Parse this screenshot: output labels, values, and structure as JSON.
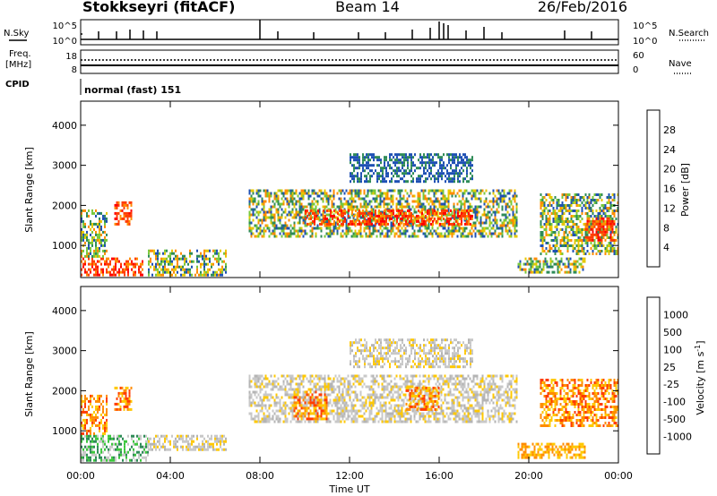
{
  "header": {
    "station": "Stokkseyri (fitACF)",
    "beam": "Beam 14",
    "date": "26/Feb/2016"
  },
  "strip_labels": {
    "nsky": "N.Sky",
    "freq_line1": "Freq.",
    "freq_line2": "[MHz]",
    "cpid": "CPID",
    "nsearch": "N.Search",
    "nave": "Nave",
    "noise_top": "10^5",
    "noise_bottom": "10^0",
    "freq_top": "18",
    "freq_bottom": "8",
    "nave_top": "60",
    "nave_bottom": "0",
    "cpid_text": "normal (fast) 151"
  },
  "chart_data": [
    {
      "type": "heatmap",
      "panel": "power",
      "ylabel": "Slant Range [km]",
      "y_ticks": [
        "4000",
        "3000",
        "2000",
        "1000"
      ],
      "ylim": [
        200,
        4600
      ],
      "xlim": [
        0,
        24
      ],
      "colorbar_label": "Power [dB]",
      "colorbar_ticks": [
        "28",
        "24",
        "20",
        "16",
        "12",
        "8",
        "4"
      ],
      "colorbar_colors": [
        "#ff0000",
        "#ff3c00",
        "#ff8c00",
        "#e6c800",
        "#78c83c",
        "#2e8b57",
        "#1e50b4",
        "#0000ff"
      ],
      "echo_regions": [
        {
          "t0": 0.0,
          "t1": 2.8,
          "r0": 250,
          "r1": 700,
          "level": "high"
        },
        {
          "t0": 0.0,
          "t1": 1.2,
          "r0": 700,
          "r1": 1900,
          "level": "mid"
        },
        {
          "t0": 1.5,
          "t1": 2.3,
          "r0": 1500,
          "r1": 2100,
          "level": "high"
        },
        {
          "t0": 3.0,
          "t1": 6.5,
          "r0": 250,
          "r1": 900,
          "level": "mid"
        },
        {
          "t0": 7.5,
          "t1": 19.5,
          "r0": 1250,
          "r1": 2400,
          "level": "mid"
        },
        {
          "t0": 10.0,
          "t1": 17.5,
          "r0": 1500,
          "r1": 1900,
          "level": "high"
        },
        {
          "t0": 12.0,
          "t1": 17.5,
          "r0": 2600,
          "r1": 3300,
          "level": "low"
        },
        {
          "t0": 20.5,
          "t1": 24.0,
          "r0": 800,
          "r1": 2300,
          "level": "mid"
        },
        {
          "t0": 22.5,
          "t1": 23.8,
          "r0": 1100,
          "r1": 1700,
          "level": "high"
        },
        {
          "t0": 19.5,
          "t1": 22.5,
          "r0": 300,
          "r1": 700,
          "level": "mid"
        }
      ]
    },
    {
      "type": "heatmap",
      "panel": "velocity",
      "ylabel": "Slant Range [km]",
      "y_ticks": [
        "4000",
        "3000",
        "2000",
        "1000"
      ],
      "ylim": [
        200,
        4600
      ],
      "xlim": [
        0,
        24
      ],
      "xlabel": "Time UT",
      "x_ticks": [
        "00:00",
        "04:00",
        "08:00",
        "12:00",
        "16:00",
        "20:00",
        "00:00"
      ],
      "colorbar_label": "Velocity [m s^-1]",
      "colorbar_ticks": [
        "1000",
        "500",
        "100",
        "25",
        "-25",
        "-100",
        "-500",
        "-1000"
      ],
      "colorbar_colors": [
        "#1e3cb4",
        "#2e8b57",
        "#3cc83c",
        "#c8c8c8",
        "#ffc800",
        "#ff8c00",
        "#ff3c00",
        "#ff0000"
      ],
      "echo_regions": [
        {
          "t0": 0.0,
          "t1": 3.0,
          "r0": 250,
          "r1": 900,
          "level": "green"
        },
        {
          "t0": 0.0,
          "t1": 1.2,
          "r0": 900,
          "r1": 1900,
          "level": "orange"
        },
        {
          "t0": 1.5,
          "t1": 2.3,
          "r0": 1500,
          "r1": 2100,
          "level": "orange"
        },
        {
          "t0": 3.0,
          "t1": 6.5,
          "r0": 500,
          "r1": 900,
          "level": "grey"
        },
        {
          "t0": 7.5,
          "t1": 19.5,
          "r0": 1250,
          "r1": 2400,
          "level": "grey"
        },
        {
          "t0": 9.5,
          "t1": 11.0,
          "r0": 1300,
          "r1": 2000,
          "level": "orange"
        },
        {
          "t0": 14.5,
          "t1": 16.0,
          "r0": 1500,
          "r1": 2100,
          "level": "orange"
        },
        {
          "t0": 12.0,
          "t1": 17.5,
          "r0": 2600,
          "r1": 3300,
          "level": "grey"
        },
        {
          "t0": 20.5,
          "t1": 24.0,
          "r0": 1100,
          "r1": 2300,
          "level": "orange"
        },
        {
          "t0": 19.5,
          "t1": 22.5,
          "r0": 300,
          "r1": 700,
          "level": "yellow"
        }
      ]
    }
  ]
}
